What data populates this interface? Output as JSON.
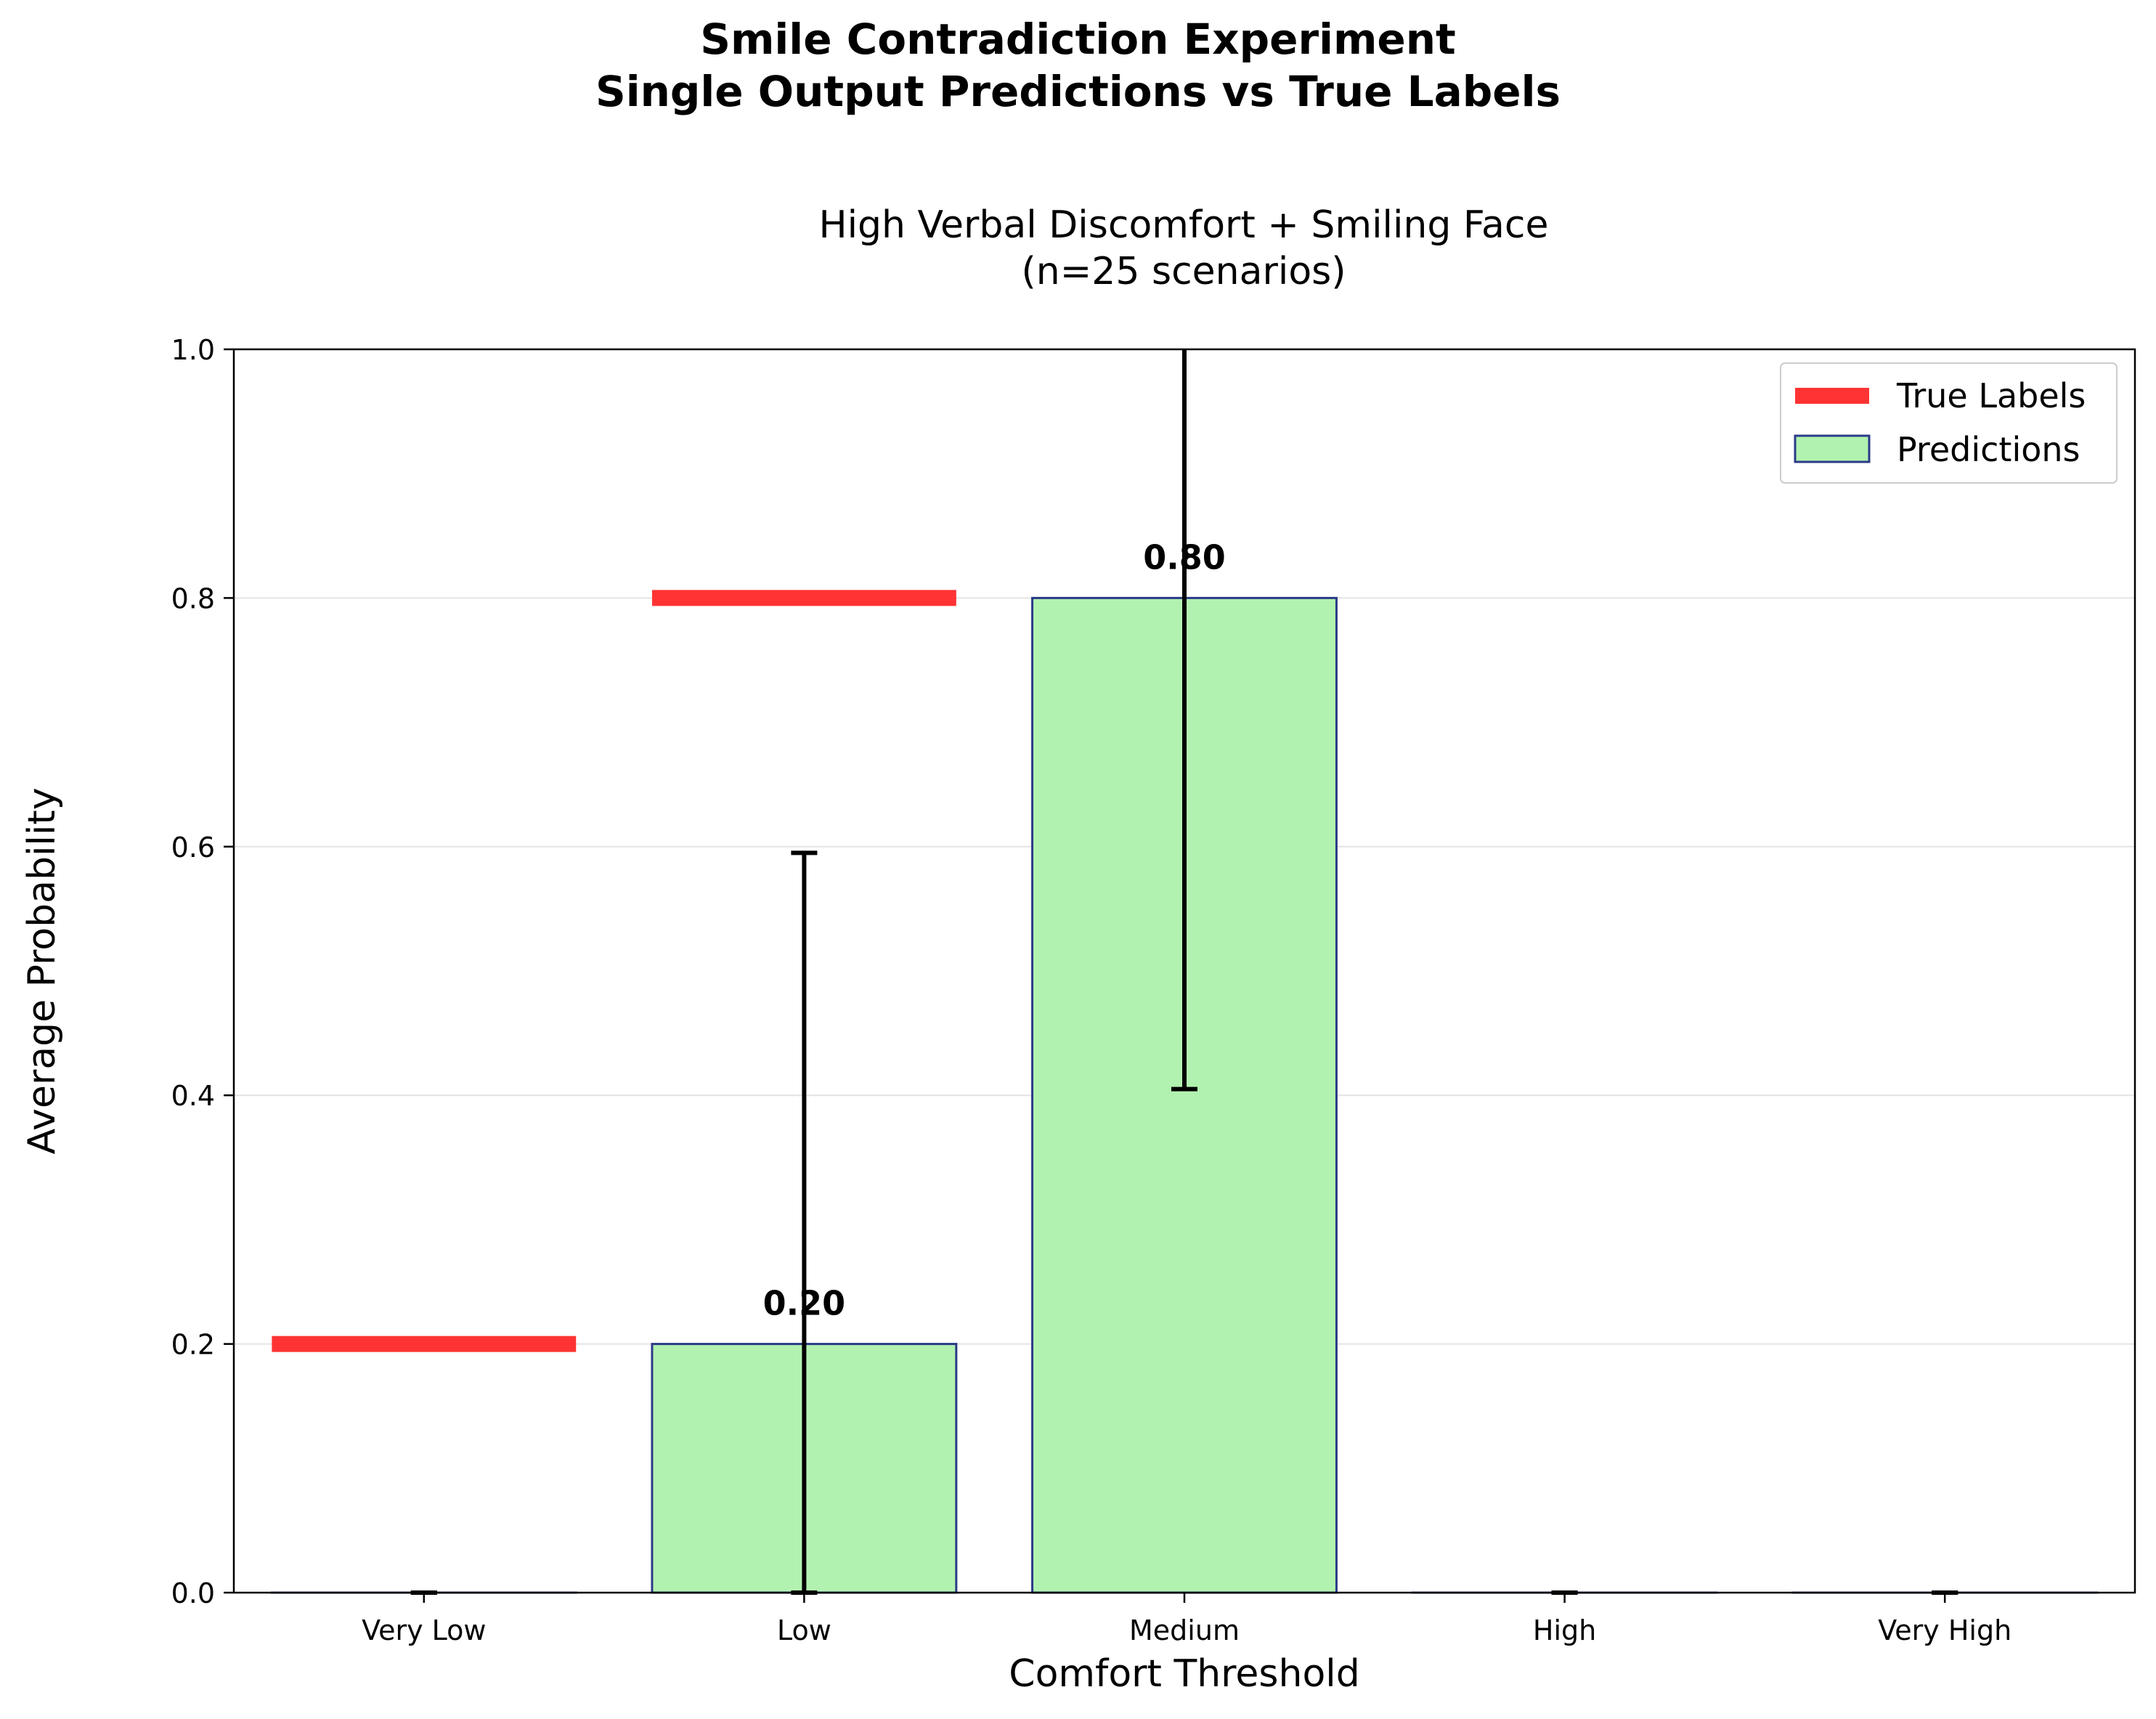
{
  "figure": {
    "suptitle_line1": "Smile Contradiction Experiment",
    "suptitle_line2": "Single Output Predictions vs True Labels"
  },
  "chart_data": {
    "type": "bar",
    "title_line1": "High Verbal Discomfort + Smiling Face",
    "title_line2": "(n=25 scenarios)",
    "xlabel": "Comfort Threshold",
    "ylabel": "Average Probability",
    "categories": [
      "Very Low",
      "Low",
      "Medium",
      "High",
      "Very High"
    ],
    "ylim": [
      0,
      1.0
    ],
    "yticks": [
      0.0,
      0.2,
      0.4,
      0.6,
      0.8,
      1.0
    ],
    "ytick_labels": [
      "0.0",
      "0.2",
      "0.4",
      "0.6",
      "0.8",
      "1.0"
    ],
    "grid": "horizontal",
    "legend_position": "top-right",
    "series": [
      {
        "name": "Predictions",
        "kind": "bar",
        "values": [
          0.0,
          0.2,
          0.8,
          0.0,
          0.0
        ],
        "error": [
          0.0,
          0.395,
          0.395,
          0.0,
          0.0
        ],
        "value_labels": [
          "",
          "0.20",
          "0.80",
          "",
          ""
        ],
        "fill": "#b2f2b0",
        "edge": "#2b3a87"
      },
      {
        "name": "True Labels",
        "kind": "line-segment",
        "values": [
          0.2,
          0.8,
          0.0,
          0.0,
          0.0
        ],
        "color": "#ff3333"
      }
    ]
  }
}
